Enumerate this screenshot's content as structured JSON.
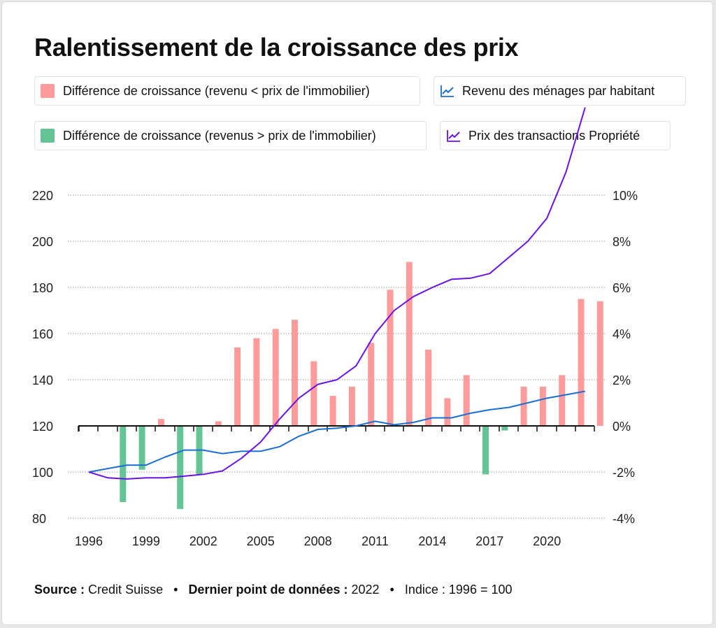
{
  "title": "Ralentissement de la croissance des prix",
  "legend": [
    {
      "label": "Différence de croissance (revenu < prix de l'immobilier)",
      "color": "#ff9b9b",
      "kind": "bar"
    },
    {
      "label": "Revenu des ménages par habitant",
      "color": "#1a6fd4",
      "kind": "line"
    },
    {
      "label": "Différence de croissance (revenus > prix de l'immobilier)",
      "color": "#64c496",
      "kind": "bar"
    },
    {
      "label": "Prix des transactions Propriété",
      "color": "#6a12e8",
      "kind": "line"
    }
  ],
  "chart_data": {
    "type": "bar",
    "title": "Ralentissement de la croissance des prix",
    "x": [
      1996,
      1997,
      1998,
      1999,
      2000,
      2001,
      2002,
      2003,
      2004,
      2005,
      2006,
      2007,
      2008,
      2009,
      2010,
      2011,
      2012,
      2013,
      2014,
      2015,
      2016,
      2017,
      2018,
      2019,
      2020,
      2021,
      2022
    ],
    "x_tick_labels": [
      "1996",
      "1999",
      "2002",
      "2005",
      "2008",
      "2011",
      "2014",
      "2017",
      "2020"
    ],
    "y_left": {
      "ylim": [
        80,
        220
      ],
      "ticks": [
        "80",
        "100",
        "120",
        "140",
        "160",
        "180",
        "200",
        "220"
      ]
    },
    "y_right": {
      "ylim": [
        -4,
        10
      ],
      "ticks": [
        "-4%",
        "-2%",
        "0%",
        "2%",
        "4%",
        "6%",
        "8%",
        "10%"
      ]
    },
    "grid": true,
    "series": [
      {
        "name": "Différence de croissance (revenu < prix de l'immobilier)",
        "type": "bar",
        "axis": "right",
        "color": "#ff9b9b",
        "values": [
          null,
          null,
          null,
          0.3,
          null,
          null,
          0.2,
          3.4,
          3.8,
          4.2,
          4.6,
          2.8,
          1.3,
          1.7,
          3.6,
          5.9,
          7.1,
          3.3,
          1.2,
          2.2,
          null,
          null,
          1.7,
          1.7,
          2.2,
          5.5,
          5.4
        ]
      },
      {
        "name": "Différence de croissance (revenus > prix de l'immobilier)",
        "type": "bar",
        "axis": "right",
        "color": "#64c496",
        "values": [
          null,
          -3.3,
          -1.9,
          null,
          -3.6,
          -2.1,
          null,
          null,
          null,
          null,
          null,
          null,
          null,
          null,
          null,
          null,
          null,
          null,
          null,
          null,
          -2.1,
          -0.2,
          null,
          null,
          null,
          null,
          null
        ]
      },
      {
        "name": "Revenu des ménages par habitant",
        "type": "line",
        "axis": "left",
        "color": "#1a6fd4",
        "values": [
          100,
          101.5,
          103,
          103,
          106.5,
          109.5,
          109.5,
          108,
          109,
          109,
          111,
          115.5,
          118.5,
          119,
          120,
          122,
          120.5,
          121.5,
          123.5,
          123.5,
          125.5,
          127,
          128,
          130,
          132,
          133.5,
          135
        ]
      },
      {
        "name": "Prix des transactions Propriété",
        "type": "line",
        "axis": "left",
        "color": "#6a12e8",
        "values": [
          100,
          97.5,
          97,
          97.5,
          97.5,
          98.2,
          99,
          100.5,
          106,
          113,
          123,
          132,
          138,
          140,
          146,
          160,
          170,
          176,
          180,
          183.5,
          184,
          186,
          193,
          200,
          210,
          230,
          258
        ]
      }
    ]
  },
  "footer": {
    "source_label": "Source :",
    "source_value": "Credit Suisse",
    "last_label": "Dernier point de données :",
    "last_value": "2022",
    "index_text": "Indice : 1996 = 100",
    "separator": "•"
  }
}
